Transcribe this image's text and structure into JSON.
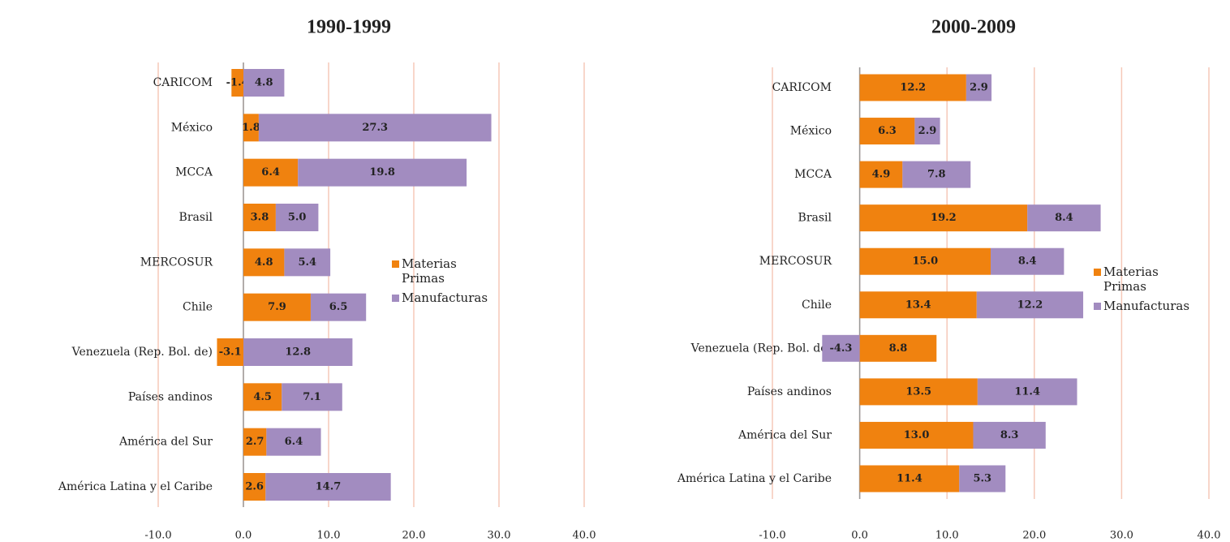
{
  "chart_data": [
    {
      "type": "bar",
      "orientation": "horizontal",
      "title": "1990-1999",
      "categories": [
        "CARICOM",
        "México",
        "MCCA",
        "Brasil",
        "MERCOSUR",
        "Chile",
        "Venezuela (Rep. Bol. de)",
        "Países andinos",
        "América del Sur",
        "América Latina y el Caribe"
      ],
      "series": [
        {
          "name": "Materias Primas",
          "color": "#f0820f",
          "values": [
            -1.4,
            1.8,
            6.4,
            3.8,
            4.8,
            7.9,
            -3.1,
            4.5,
            2.7,
            2.6
          ],
          "value_labels": [
            "-1.4",
            "1.8",
            "6.4",
            "3.8",
            "4.8",
            "7.9",
            "-3.1",
            "4.5",
            "2.7",
            "2.6"
          ]
        },
        {
          "name": "Manufacturas",
          "color": "#a28cc0",
          "values": [
            4.8,
            27.3,
            19.8,
            5.0,
            5.4,
            6.5,
            12.8,
            7.1,
            6.4,
            14.7
          ],
          "value_labels": [
            "4.8",
            "27.3",
            "19.8",
            "5.0",
            "5.4",
            "6.5",
            "12.8",
            "7.1",
            "6.4",
            "14.7"
          ]
        }
      ],
      "xlim": [
        -10,
        40
      ],
      "xticks": [
        {
          "value": -10,
          "label": "-10.0"
        },
        {
          "value": 0,
          "label": "0.0"
        },
        {
          "value": 10,
          "label": "10.0"
        },
        {
          "value": 20,
          "label": "20.0"
        },
        {
          "value": 30,
          "label": "30.0"
        },
        {
          "value": 40,
          "label": "40.0"
        }
      ],
      "grid": true,
      "legend": "right"
    },
    {
      "type": "bar",
      "orientation": "horizontal",
      "title": "2000-2009",
      "categories": [
        "CARICOM",
        "México",
        "MCCA",
        "Brasil",
        "MERCOSUR",
        "Chile",
        "Venezuela (Rep. Bol. de)",
        "Países andinos",
        "América del Sur",
        "América Latina y el Caribe"
      ],
      "series": [
        {
          "name": "Materias Primas",
          "color": "#f0820f",
          "values": [
            12.2,
            6.3,
            4.9,
            19.2,
            15.0,
            13.4,
            8.8,
            13.5,
            13.0,
            11.4
          ],
          "value_labels": [
            "12.2",
            "6.3",
            "4.9",
            "19.2",
            "15.0",
            "13.4",
            "8.8",
            "13.5",
            "13.0",
            "11.4"
          ]
        },
        {
          "name": "Manufacturas",
          "color": "#a28cc0",
          "values": [
            2.9,
            2.9,
            7.8,
            8.4,
            8.4,
            12.2,
            -4.3,
            11.4,
            8.3,
            5.3
          ],
          "value_labels": [
            "2.9",
            "2.9",
            "7.8",
            "8.4",
            "8.4",
            "12.2",
            "-4.3",
            "11.4",
            "8.3",
            "5.3"
          ]
        }
      ],
      "xlim": [
        -10,
        40
      ],
      "xticks": [
        {
          "value": -10,
          "label": "-10.0"
        },
        {
          "value": 0,
          "label": "0.0"
        },
        {
          "value": 10,
          "label": "10.0"
        },
        {
          "value": 20,
          "label": "20.0"
        },
        {
          "value": 30,
          "label": "30.0"
        },
        {
          "value": 40,
          "label": "40.0"
        }
      ],
      "grid": true,
      "legend": "right"
    }
  ]
}
